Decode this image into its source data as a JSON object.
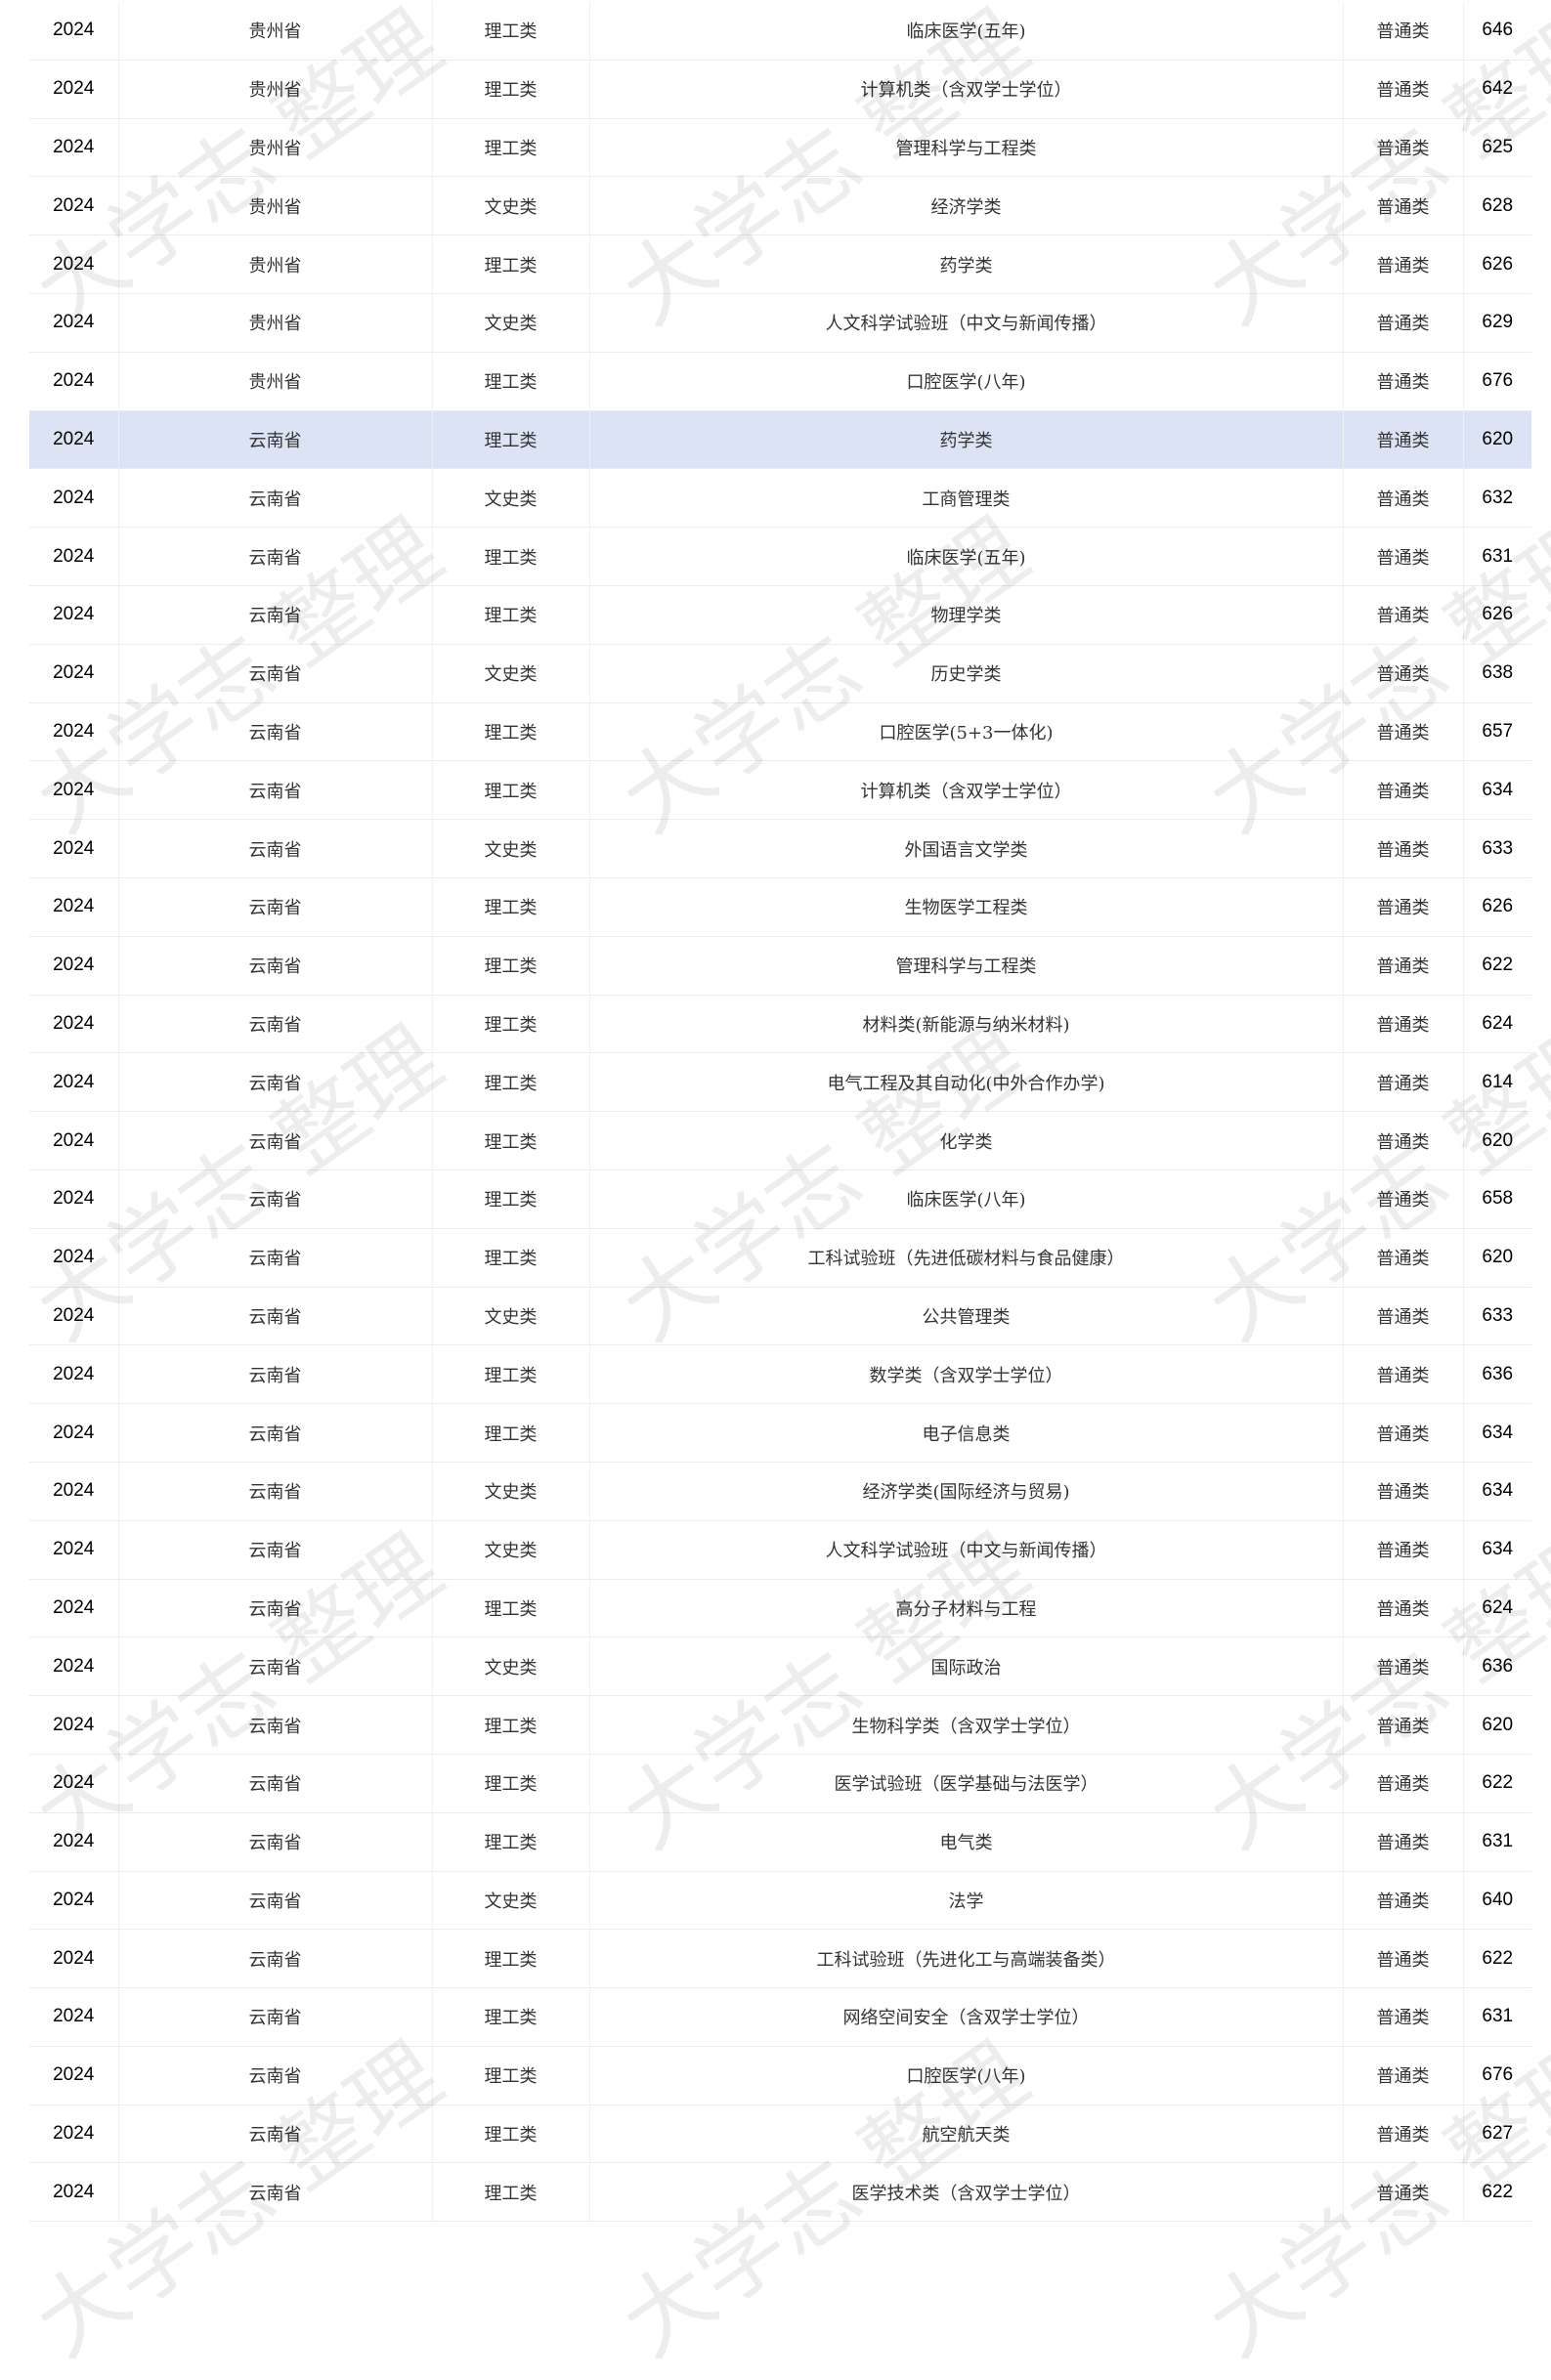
{
  "watermark": "大学志 整理",
  "highlight_color": "#dce3f5",
  "rows": [
    [
      "2024",
      "贵州省",
      "理工类",
      "临床医学(五年)",
      "普通类",
      "646"
    ],
    [
      "2024",
      "贵州省",
      "理工类",
      "计算机类（含双学士学位）",
      "普通类",
      "642"
    ],
    [
      "2024",
      "贵州省",
      "理工类",
      "管理科学与工程类",
      "普通类",
      "625"
    ],
    [
      "2024",
      "贵州省",
      "文史类",
      "经济学类",
      "普通类",
      "628"
    ],
    [
      "2024",
      "贵州省",
      "理工类",
      "药学类",
      "普通类",
      "626"
    ],
    [
      "2024",
      "贵州省",
      "文史类",
      "人文科学试验班（中文与新闻传播）",
      "普通类",
      "629"
    ],
    [
      "2024",
      "贵州省",
      "理工类",
      "口腔医学(八年)",
      "普通类",
      "676"
    ],
    [
      "2024",
      "云南省",
      "理工类",
      "药学类",
      "普通类",
      "620"
    ],
    [
      "2024",
      "云南省",
      "文史类",
      "工商管理类",
      "普通类",
      "632"
    ],
    [
      "2024",
      "云南省",
      "理工类",
      "临床医学(五年)",
      "普通类",
      "631"
    ],
    [
      "2024",
      "云南省",
      "理工类",
      "物理学类",
      "普通类",
      "626"
    ],
    [
      "2024",
      "云南省",
      "文史类",
      "历史学类",
      "普通类",
      "638"
    ],
    [
      "2024",
      "云南省",
      "理工类",
      "口腔医学(5+3一体化)",
      "普通类",
      "657"
    ],
    [
      "2024",
      "云南省",
      "理工类",
      "计算机类（含双学士学位）",
      "普通类",
      "634"
    ],
    [
      "2024",
      "云南省",
      "文史类",
      "外国语言文学类",
      "普通类",
      "633"
    ],
    [
      "2024",
      "云南省",
      "理工类",
      "生物医学工程类",
      "普通类",
      "626"
    ],
    [
      "2024",
      "云南省",
      "理工类",
      "管理科学与工程类",
      "普通类",
      "622"
    ],
    [
      "2024",
      "云南省",
      "理工类",
      "材料类(新能源与纳米材料)",
      "普通类",
      "624"
    ],
    [
      "2024",
      "云南省",
      "理工类",
      "电气工程及其自动化(中外合作办学)",
      "普通类",
      "614"
    ],
    [
      "2024",
      "云南省",
      "理工类",
      "化学类",
      "普通类",
      "620"
    ],
    [
      "2024",
      "云南省",
      "理工类",
      "临床医学(八年)",
      "普通类",
      "658"
    ],
    [
      "2024",
      "云南省",
      "理工类",
      "工科试验班（先进低碳材料与食品健康）",
      "普通类",
      "620"
    ],
    [
      "2024",
      "云南省",
      "文史类",
      "公共管理类",
      "普通类",
      "633"
    ],
    [
      "2024",
      "云南省",
      "理工类",
      "数学类（含双学士学位）",
      "普通类",
      "636"
    ],
    [
      "2024",
      "云南省",
      "理工类",
      "电子信息类",
      "普通类",
      "634"
    ],
    [
      "2024",
      "云南省",
      "文史类",
      "经济学类(国际经济与贸易)",
      "普通类",
      "634"
    ],
    [
      "2024",
      "云南省",
      "文史类",
      "人文科学试验班（中文与新闻传播）",
      "普通类",
      "634"
    ],
    [
      "2024",
      "云南省",
      "理工类",
      "高分子材料与工程",
      "普通类",
      "624"
    ],
    [
      "2024",
      "云南省",
      "文史类",
      "国际政治",
      "普通类",
      "636"
    ],
    [
      "2024",
      "云南省",
      "理工类",
      "生物科学类（含双学士学位）",
      "普通类",
      "620"
    ],
    [
      "2024",
      "云南省",
      "理工类",
      "医学试验班（医学基础与法医学）",
      "普通类",
      "622"
    ],
    [
      "2024",
      "云南省",
      "理工类",
      "电气类",
      "普通类",
      "631"
    ],
    [
      "2024",
      "云南省",
      "文史类",
      "法学",
      "普通类",
      "640"
    ],
    [
      "2024",
      "云南省",
      "理工类",
      "工科试验班（先进化工与高端装备类）",
      "普通类",
      "622"
    ],
    [
      "2024",
      "云南省",
      "理工类",
      "网络空间安全（含双学士学位）",
      "普通类",
      "631"
    ],
    [
      "2024",
      "云南省",
      "理工类",
      "口腔医学(八年)",
      "普通类",
      "676"
    ],
    [
      "2024",
      "云南省",
      "理工类",
      "航空航天类",
      "普通类",
      "627"
    ],
    [
      "2024",
      "云南省",
      "理工类",
      "医学技术类（含双学士学位）",
      "普通类",
      "622"
    ]
  ],
  "highlighted_row": 7
}
